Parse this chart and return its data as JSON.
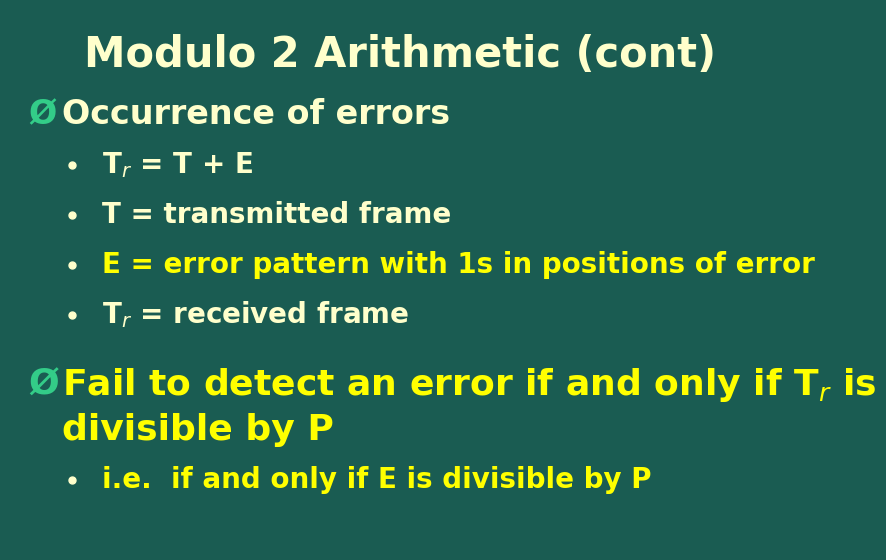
{
  "title": "Modulo 2 Arithmetic (cont)",
  "background_color": "#1a5c52",
  "title_color": "#ffffcc",
  "bullet_color": "#ffff00",
  "white_color": "#ffffcc",
  "arrow_color": "#33cc88",
  "title_fontsize": 30,
  "heading_fontsize": 24,
  "bullet_fontsize": 20,
  "heading1_text": "Occurrence of errors",
  "b1": "T$_r$ = T + E",
  "b2": "T = transmitted frame",
  "b3": "E = error pattern with 1s in positions of error",
  "b4": "T$_r$ = received frame",
  "heading2_line1": "Fail to detect an error if and only if T$_r$ is",
  "heading2_line2": "divisible by P",
  "sub1": "i.e.  if and only if E is divisible by P"
}
